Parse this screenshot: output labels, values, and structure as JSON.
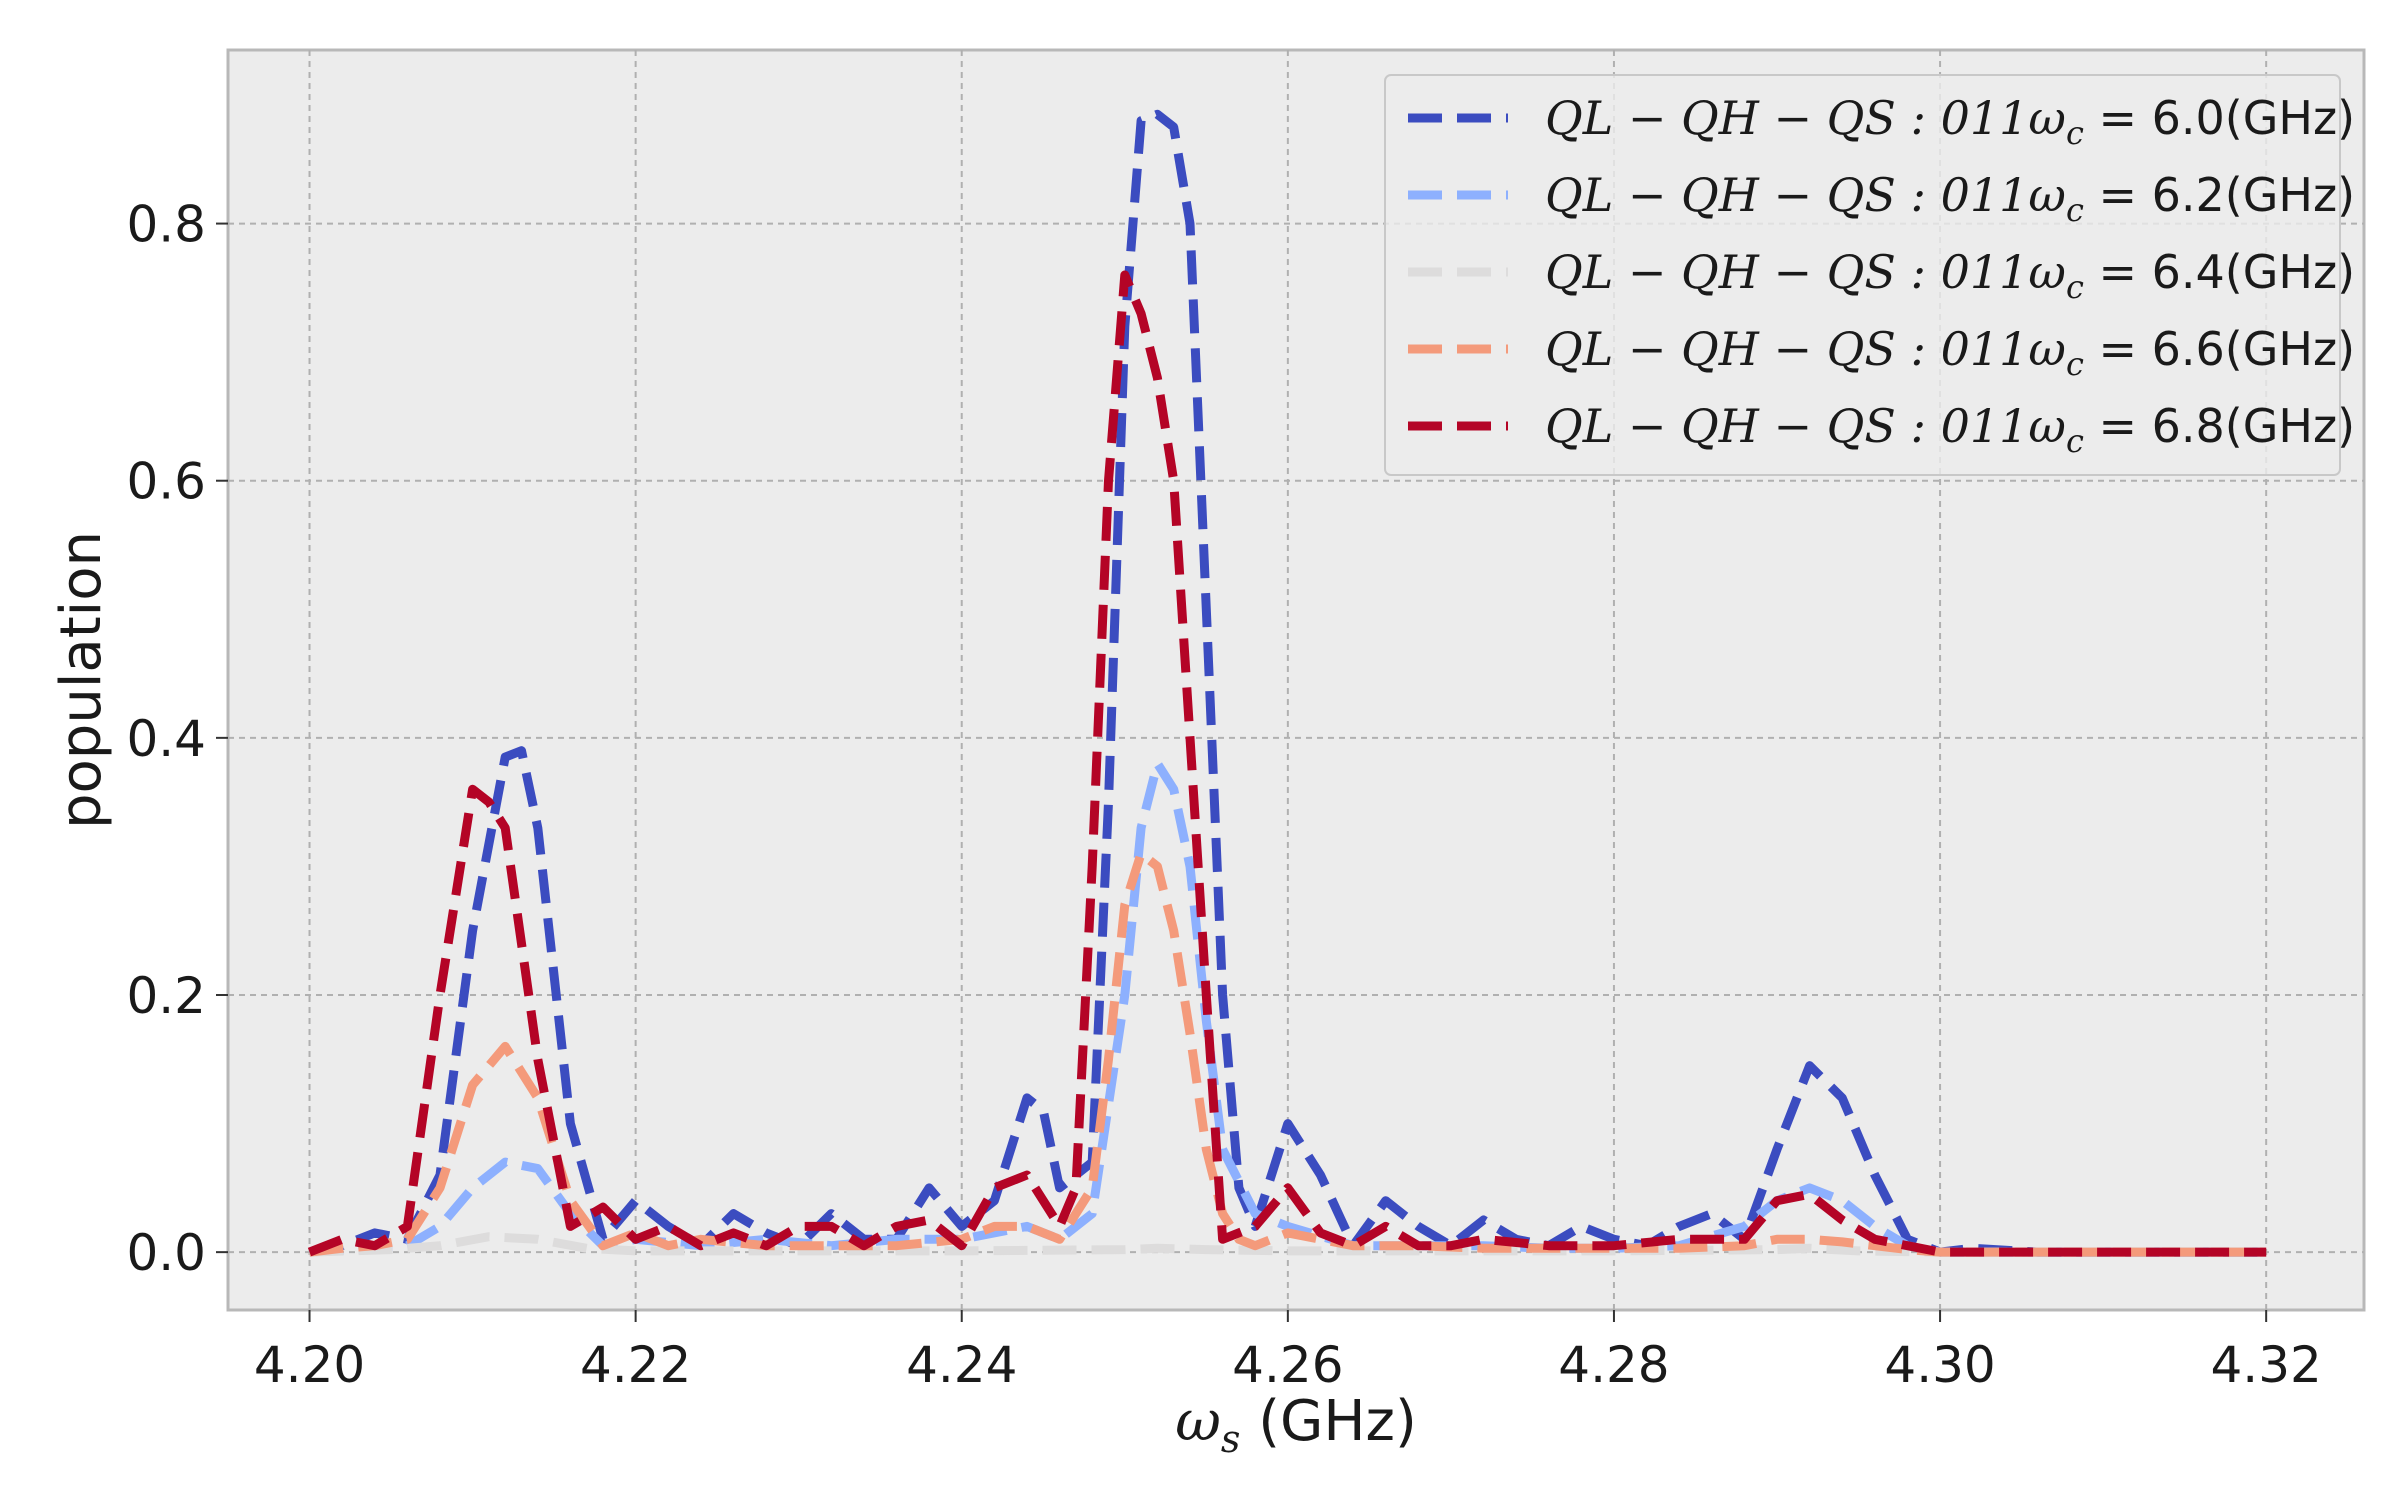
{
  "chart_data": {
    "type": "line",
    "xlabel_math": "ω",
    "xlabel_sub": "s",
    "xlabel_unit": " (GHz)",
    "ylabel": "population",
    "xlim": [
      4.195,
      4.326
    ],
    "ylim": [
      -0.045,
      0.935
    ],
    "xticks": [
      4.2,
      4.22,
      4.24,
      4.26,
      4.28,
      4.3,
      4.32
    ],
    "xtick_labels": [
      "4.20",
      "4.22",
      "4.24",
      "4.26",
      "4.28",
      "4.30",
      "4.32"
    ],
    "yticks": [
      0.0,
      0.2,
      0.4,
      0.6,
      0.8
    ],
    "ytick_labels": [
      "0.0",
      "0.2",
      "0.4",
      "0.6",
      "0.8"
    ],
    "grid": true,
    "legend_position": "top-right",
    "line_style": "dashed",
    "background": "#ececec",
    "series": [
      {
        "name_math": "QL − QH − QS : 011ω",
        "name_sub": "c",
        "name_value": " = 6.0(GHz)",
        "color": "#3b4cc0",
        "x": [
          4.2,
          4.202,
          4.204,
          4.206,
          4.208,
          4.21,
          4.212,
          4.213,
          4.214,
          4.216,
          4.218,
          4.22,
          4.222,
          4.224,
          4.226,
          4.228,
          4.23,
          4.232,
          4.234,
          4.236,
          4.238,
          4.24,
          4.242,
          4.244,
          4.245,
          4.246,
          4.248,
          4.249,
          4.25,
          4.251,
          4.252,
          4.253,
          4.254,
          4.255,
          4.256,
          4.257,
          4.258,
          4.26,
          4.262,
          4.264,
          4.266,
          4.268,
          4.27,
          4.272,
          4.274,
          4.276,
          4.278,
          4.28,
          4.282,
          4.284,
          4.286,
          4.288,
          4.29,
          4.292,
          4.294,
          4.296,
          4.298,
          4.3,
          4.302,
          4.306,
          4.31,
          4.315,
          4.32
        ],
        "y": [
          0.0,
          0.005,
          0.015,
          0.01,
          0.06,
          0.25,
          0.385,
          0.39,
          0.33,
          0.1,
          0.01,
          0.04,
          0.02,
          0.005,
          0.03,
          0.015,
          0.005,
          0.03,
          0.01,
          0.01,
          0.05,
          0.02,
          0.04,
          0.12,
          0.11,
          0.05,
          0.07,
          0.35,
          0.72,
          0.88,
          0.885,
          0.875,
          0.8,
          0.5,
          0.2,
          0.05,
          0.02,
          0.1,
          0.06,
          0.005,
          0.04,
          0.02,
          0.005,
          0.025,
          0.01,
          0.005,
          0.02,
          0.01,
          0.005,
          0.02,
          0.03,
          0.01,
          0.08,
          0.145,
          0.12,
          0.06,
          0.01,
          0.0,
          0.003,
          0.0,
          0.0,
          0.0,
          0.0
        ]
      },
      {
        "name_math": "QL − QH − QS : 011ω",
        "name_sub": "c",
        "name_value": " = 6.2(GHz)",
        "color": "#8db0fe",
        "x": [
          4.2,
          4.204,
          4.206,
          4.208,
          4.21,
          4.212,
          4.214,
          4.216,
          4.218,
          4.22,
          4.224,
          4.228,
          4.232,
          4.236,
          4.24,
          4.244,
          4.246,
          4.248,
          4.25,
          4.251,
          4.252,
          4.253,
          4.254,
          4.255,
          4.256,
          4.258,
          4.26,
          4.264,
          4.268,
          4.272,
          4.276,
          4.28,
          4.284,
          4.288,
          4.29,
          4.292,
          4.294,
          4.296,
          4.298,
          4.3,
          4.31,
          4.32
        ],
        "y": [
          0.0,
          0.003,
          0.005,
          0.02,
          0.05,
          0.07,
          0.065,
          0.03,
          0.005,
          0.01,
          0.005,
          0.01,
          0.005,
          0.01,
          0.01,
          0.02,
          0.01,
          0.03,
          0.2,
          0.33,
          0.38,
          0.36,
          0.3,
          0.18,
          0.08,
          0.03,
          0.02,
          0.005,
          0.005,
          0.005,
          0.003,
          0.003,
          0.005,
          0.02,
          0.04,
          0.05,
          0.04,
          0.02,
          0.005,
          0.0,
          0.0,
          0.0
        ]
      },
      {
        "name_math": "QL − QH − QS : 011ω",
        "name_sub": "c",
        "name_value": " = 6.4(GHz)",
        "color": "#dddcdc",
        "x": [
          4.2,
          4.205,
          4.208,
          4.211,
          4.214,
          4.217,
          4.22,
          4.23,
          4.24,
          4.25,
          4.252,
          4.255,
          4.26,
          4.27,
          4.28,
          4.29,
          4.292,
          4.295,
          4.3,
          4.31,
          4.32
        ],
        "y": [
          0.0,
          0.002,
          0.005,
          0.012,
          0.01,
          0.003,
          0.001,
          0.001,
          0.001,
          0.002,
          0.003,
          0.002,
          0.001,
          0.001,
          0.001,
          0.002,
          0.003,
          0.001,
          0.0,
          0.0,
          0.0
        ]
      },
      {
        "name_math": "QL − QH − QS : 011ω",
        "name_sub": "c",
        "name_value": " = 6.6(GHz)",
        "color": "#f49a7b",
        "x": [
          4.2,
          4.202,
          4.204,
          4.206,
          4.208,
          4.21,
          4.212,
          4.214,
          4.216,
          4.218,
          4.22,
          4.222,
          4.224,
          4.228,
          4.232,
          4.236,
          4.24,
          4.242,
          4.244,
          4.246,
          4.248,
          4.249,
          4.25,
          4.251,
          4.252,
          4.253,
          4.254,
          4.255,
          4.256,
          4.257,
          4.258,
          4.26,
          4.264,
          4.268,
          4.272,
          4.276,
          4.28,
          4.284,
          4.288,
          4.29,
          4.292,
          4.294,
          4.296,
          4.298,
          4.3,
          4.31,
          4.32
        ],
        "y": [
          0.0,
          0.003,
          0.005,
          0.01,
          0.05,
          0.13,
          0.16,
          0.12,
          0.04,
          0.005,
          0.015,
          0.005,
          0.01,
          0.005,
          0.005,
          0.005,
          0.01,
          0.02,
          0.02,
          0.01,
          0.05,
          0.15,
          0.27,
          0.31,
          0.3,
          0.25,
          0.17,
          0.08,
          0.03,
          0.01,
          0.005,
          0.015,
          0.005,
          0.005,
          0.003,
          0.003,
          0.003,
          0.003,
          0.005,
          0.01,
          0.01,
          0.008,
          0.005,
          0.002,
          0.0,
          0.0,
          0.0
        ]
      },
      {
        "name_math": "QL − QH − QS : 011ω",
        "name_sub": "c",
        "name_value": " = 6.8(GHz)",
        "color": "#b40426",
        "x": [
          4.2,
          4.202,
          4.204,
          4.206,
          4.208,
          4.21,
          4.211,
          4.212,
          4.214,
          4.216,
          4.218,
          4.22,
          4.222,
          4.224,
          4.226,
          4.228,
          4.23,
          4.232,
          4.234,
          4.236,
          4.238,
          4.24,
          4.242,
          4.244,
          4.246,
          4.247,
          4.248,
          4.249,
          4.25,
          4.251,
          4.252,
          4.253,
          4.254,
          4.255,
          4.256,
          4.258,
          4.26,
          4.262,
          4.264,
          4.266,
          4.268,
          4.27,
          4.272,
          4.276,
          4.28,
          4.284,
          4.288,
          4.29,
          4.292,
          4.294,
          4.296,
          4.298,
          4.3,
          4.31,
          4.32
        ],
        "y": [
          0.0,
          0.01,
          0.005,
          0.02,
          0.2,
          0.36,
          0.35,
          0.33,
          0.15,
          0.02,
          0.035,
          0.01,
          0.02,
          0.005,
          0.015,
          0.005,
          0.02,
          0.02,
          0.005,
          0.02,
          0.025,
          0.005,
          0.05,
          0.06,
          0.02,
          0.05,
          0.3,
          0.6,
          0.76,
          0.73,
          0.68,
          0.6,
          0.4,
          0.2,
          0.01,
          0.02,
          0.05,
          0.015,
          0.005,
          0.02,
          0.005,
          0.005,
          0.01,
          0.005,
          0.005,
          0.01,
          0.01,
          0.04,
          0.045,
          0.025,
          0.01,
          0.005,
          0.0,
          0.0,
          0.0
        ]
      }
    ]
  }
}
